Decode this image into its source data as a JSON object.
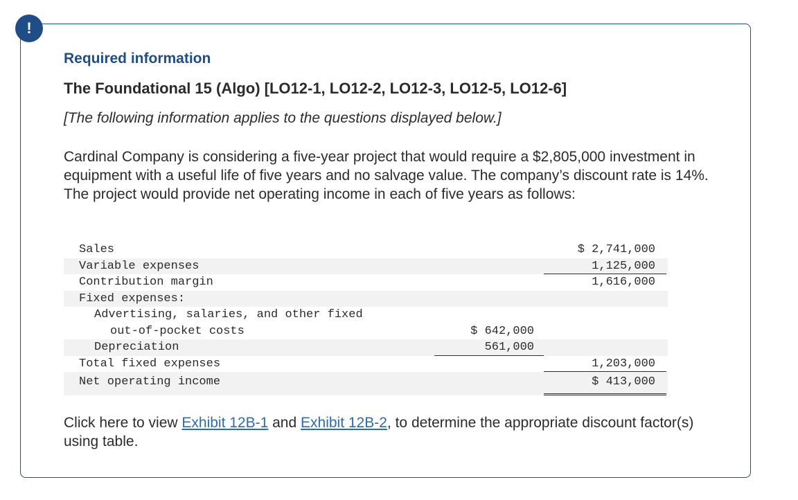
{
  "header": {
    "alert_glyph": "!",
    "required": "Required information",
    "title": "The Foundational 15 (Algo) [LO12-1, LO12-2, LO12-3, LO12-5, LO12-6]",
    "note": "[The following information applies to the questions displayed below.]"
  },
  "intro": "Cardinal Company is considering a five-year project that would require a $2,805,000 investment in equipment with a useful life of five years and no salvage value. The company’s discount rate is 14%. The project would provide net operating income in each of five years as follows:",
  "statement": {
    "sales_label": "Sales",
    "sales_value": "$ 2,741,000",
    "variable_label": "Variable expenses",
    "variable_value": "1,125,000",
    "cm_label": "Contribution margin",
    "cm_value": "1,616,000",
    "fixed_label": "Fixed expenses:",
    "advert_label_1": "Advertising, salaries, and other fixed",
    "advert_label_2": "out-of-pocket costs",
    "advert_value": "$ 642,000",
    "depr_label": "Depreciation",
    "depr_value": "561,000",
    "total_fixed_label": "Total fixed expenses",
    "total_fixed_value": "1,203,000",
    "noi_label": "Net operating income",
    "noi_value": "$ 413,000"
  },
  "footer": {
    "prefix": "Click here to view ",
    "link1": "Exhibit 12B-1",
    "middle": " and ",
    "link2": "Exhibit 12B-2",
    "suffix": ", to determine the appropriate discount factor(s) using table."
  }
}
